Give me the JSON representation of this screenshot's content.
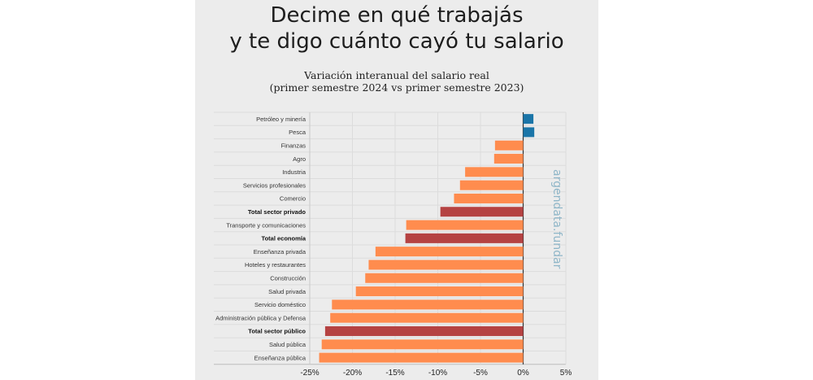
{
  "header": {
    "title_line1": "Decime en qué trabajás",
    "title_line2": "y te digo cuánto cayó tu salario",
    "subtitle_line1": "Variación interanual del salario real",
    "subtitle_line2": "(primer semestre 2024 vs primer semestre 2023)"
  },
  "watermark": "argendata.fundar",
  "colors": {
    "positive": "#1a75a8",
    "negative": "#ff8c4e",
    "total": "#b54242",
    "panel": "#ececec",
    "grid": "#dcdcdc"
  },
  "chart_data": {
    "type": "bar",
    "orientation": "horizontal",
    "title": "Variación interanual del salario real",
    "subtitle": "(primer semestre 2024 vs primer semestre 2023)",
    "xlabel": "",
    "ylabel": "",
    "xlim": [
      -25,
      5
    ],
    "unit": "%",
    "grid": true,
    "legend": "none",
    "x_ticks": [
      -25,
      -20,
      -15,
      -10,
      -5,
      0,
      5
    ],
    "x_tick_labels": [
      "-25%",
      "-20%",
      "-15%",
      "-10%",
      "-5%",
      "0%",
      "5%"
    ],
    "categories": [
      "Petróleo y minería",
      "Pesca",
      "Finanzas",
      "Agro",
      "Industria",
      "Servicios profesionales",
      "Comercio",
      "Total sector privado",
      "Transporte y comunicaciones",
      "Total economía",
      "Enseñanza privada",
      "Hoteles y restaurantes",
      "Construcción",
      "Salud privada",
      "Servicio doméstico",
      "Administración pública y Defensa",
      "Total sector público",
      "Salud pública",
      "Enseñanza pública"
    ],
    "values": [
      1.2,
      1.3,
      -3.3,
      -3.4,
      -6.8,
      -7.4,
      -8.1,
      -9.7,
      -13.7,
      -13.8,
      -17.3,
      -18.1,
      -18.5,
      -19.6,
      -22.4,
      -22.6,
      -23.2,
      -23.6,
      -23.9
    ],
    "is_total": [
      false,
      false,
      false,
      false,
      false,
      false,
      false,
      true,
      false,
      true,
      false,
      false,
      false,
      false,
      false,
      false,
      true,
      false,
      false
    ]
  }
}
